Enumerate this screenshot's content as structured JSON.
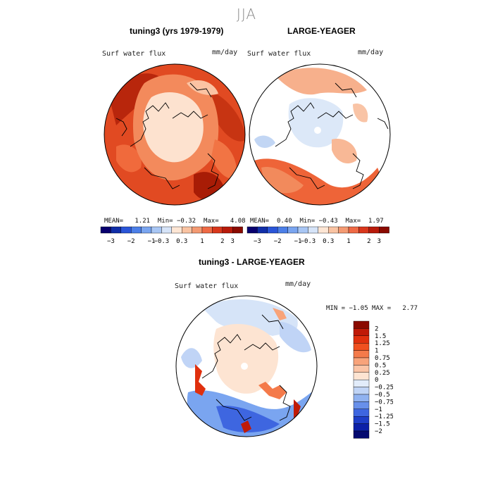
{
  "season": "JJA",
  "panels": [
    {
      "title": "tuning3 (yrs 1979-1979)",
      "variable": "Surf water flux",
      "units": "mm/day",
      "stats": {
        "mean_label": "MEAN=",
        "mean": "1.21",
        "min_label": "Min=",
        "min": "−0.32",
        "max_label": "Max=",
        "max": "4.08"
      }
    },
    {
      "title": "LARGE-YEAGER",
      "variable": "Surf water flux",
      "units": "mm/day",
      "stats": {
        "mean_label": "MEAN=",
        "mean": "0.40",
        "min_label": "Min=",
        "min": "−0.43",
        "max_label": "Max=",
        "max": "1.97"
      }
    }
  ],
  "colorbar_top": {
    "colors": [
      "#08006e",
      "#102ea8",
      "#2a55d8",
      "#4c7fe8",
      "#7aa5f0",
      "#a8c6f4",
      "#d6e4f8",
      "#fde6d4",
      "#f9c3a2",
      "#f49a72",
      "#ef6a45",
      "#d9371c",
      "#b81a0a",
      "#8a0a00"
    ],
    "tick_labels": [
      "−3",
      "−2",
      "−1",
      "−0.3",
      "0.3",
      "1",
      "2",
      "3"
    ]
  },
  "diff_panel": {
    "title": "tuning3 - LARGE-YEAGER",
    "variable": "Surf water flux",
    "units": "mm/day",
    "stats": {
      "min_label": "MIN =",
      "min": "−1.05",
      "max_label": "MAX =",
      "max": "2.77"
    }
  },
  "colorbar_diff": {
    "labels": [
      "2",
      "1.5",
      "1.25",
      "1",
      "0.75",
      "0.5",
      "0.25",
      "0",
      "−0.25",
      "−0.5",
      "−0.75",
      "−1",
      "−1.25",
      "−1.5",
      "−2"
    ],
    "colors": [
      "#8a0a00",
      "#c01a08",
      "#e0300e",
      "#f05020",
      "#f47a4a",
      "#f8a37a",
      "#fbc4a6",
      "#fde4d2",
      "#e2ecfa",
      "#c0d4f6",
      "#90b2f0",
      "#6890ea",
      "#3e66e0",
      "#1e3ec8",
      "#0c20a8",
      "#040a70"
    ]
  }
}
